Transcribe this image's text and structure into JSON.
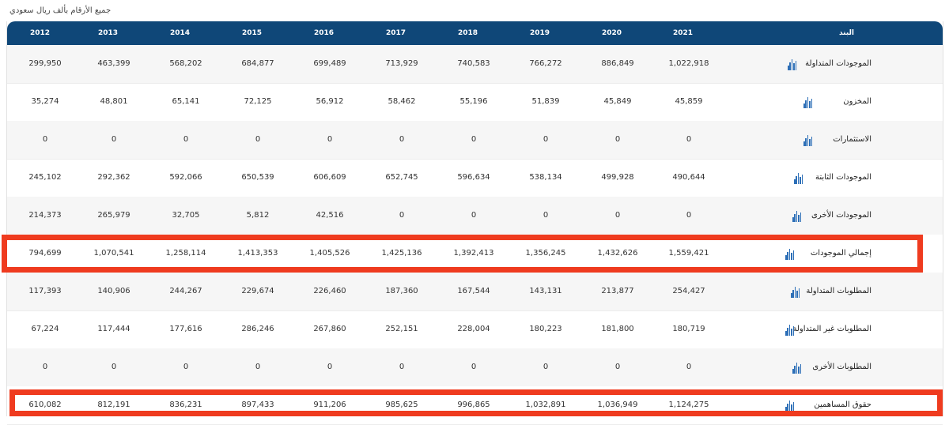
{
  "note": "جميع الأرقام بألف ريال سعودي",
  "header": {
    "item_label": "البند",
    "years": [
      "2021",
      "2020",
      "2019",
      "2018",
      "2017",
      "2016",
      "2015",
      "2014",
      "2013",
      "2012"
    ]
  },
  "rows": [
    {
      "label": "الموجودات المتداولة",
      "values": [
        "1,022,918",
        "886,849",
        "766,272",
        "740,583",
        "713,929",
        "699,489",
        "684,877",
        "568,202",
        "463,399",
        "299,950"
      ]
    },
    {
      "label": "المخزون",
      "values": [
        "45,859",
        "45,849",
        "51,839",
        "55,196",
        "58,462",
        "56,912",
        "72,125",
        "65,141",
        "48,801",
        "35,274"
      ]
    },
    {
      "label": "الاستثمارات",
      "values": [
        "0",
        "0",
        "0",
        "0",
        "0",
        "0",
        "0",
        "0",
        "0",
        "0"
      ]
    },
    {
      "label": "الموجودات الثابتة",
      "values": [
        "490,644",
        "499,928",
        "538,134",
        "596,634",
        "652,745",
        "606,609",
        "650,539",
        "592,066",
        "292,362",
        "245,102"
      ]
    },
    {
      "label": "الموجودات الأخرى",
      "values": [
        "0",
        "0",
        "0",
        "0",
        "0",
        "42,516",
        "5,812",
        "32,705",
        "265,979",
        "214,373"
      ]
    },
    {
      "label": "إجمالي الموجودات",
      "values": [
        "1,559,421",
        "1,432,626",
        "1,356,245",
        "1,392,413",
        "1,425,136",
        "1,405,526",
        "1,413,353",
        "1,258,114",
        "1,070,541",
        "794,699"
      ]
    },
    {
      "label": "المطلوبات المتداولة",
      "values": [
        "254,427",
        "213,877",
        "143,131",
        "167,544",
        "187,360",
        "226,460",
        "229,674",
        "244,267",
        "140,906",
        "117,393"
      ]
    },
    {
      "label": "المطلوبات غير المتداولة",
      "values": [
        "180,719",
        "181,800",
        "180,223",
        "228,004",
        "252,151",
        "267,860",
        "286,246",
        "177,616",
        "117,444",
        "67,224"
      ]
    },
    {
      "label": "المطلوبات الأخرى",
      "values": [
        "0",
        "0",
        "0",
        "0",
        "0",
        "0",
        "0",
        "0",
        "0",
        "0"
      ]
    },
    {
      "label": "حقوق المساهمين",
      "values": [
        "1,124,275",
        "1,036,949",
        "1,032,891",
        "996,865",
        "985,625",
        "911,206",
        "897,433",
        "836,231",
        "812,191",
        "610,082"
      ]
    }
  ],
  "icon": "bar-chart-icon",
  "colors": {
    "header_bg": "#0f4778",
    "highlight": "#ef3b1f",
    "icon": "#2d6fb7"
  }
}
